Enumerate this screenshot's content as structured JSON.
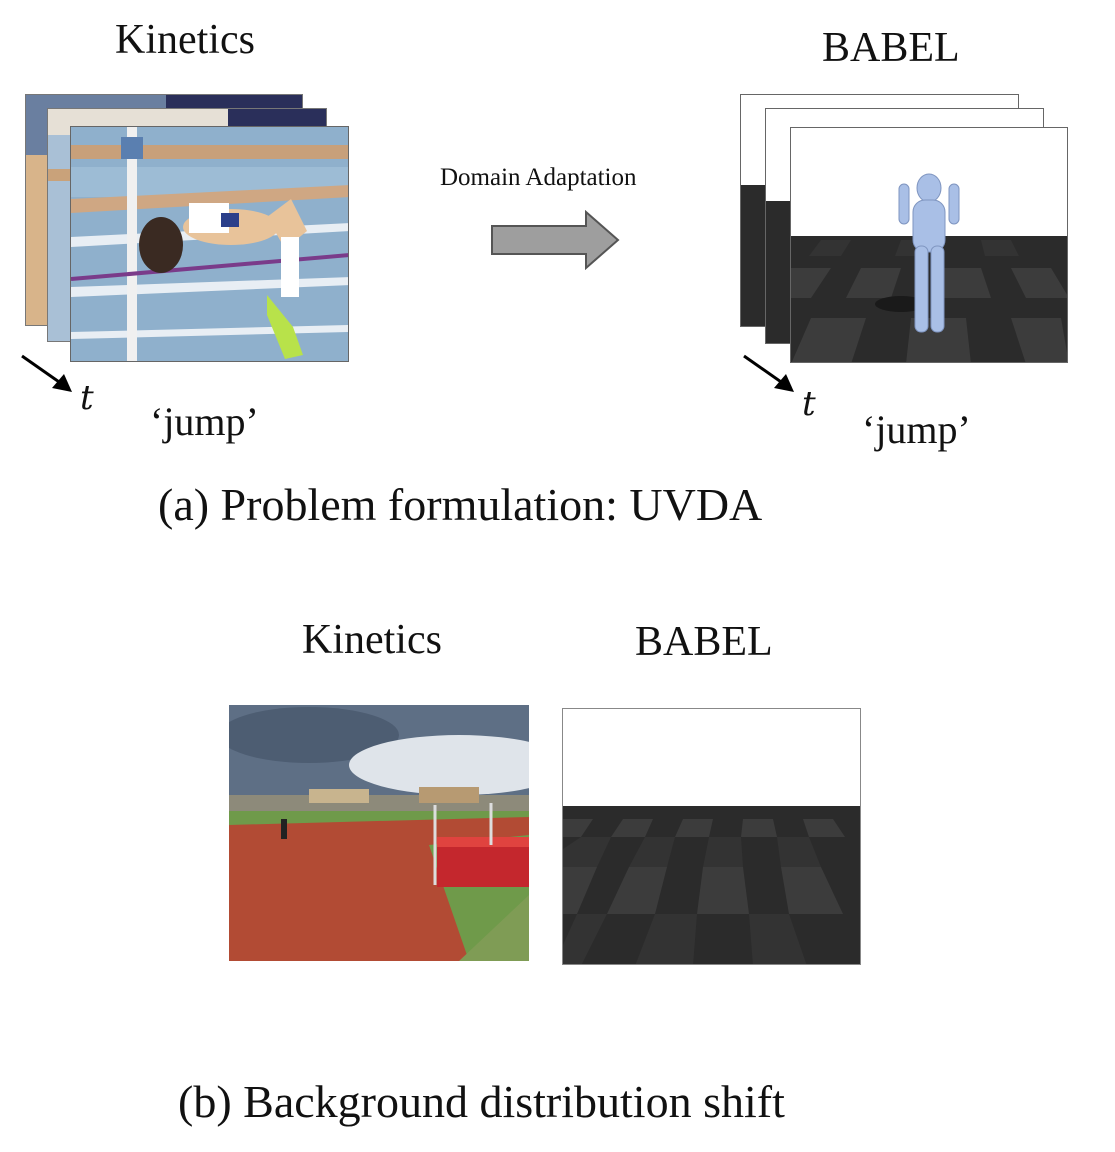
{
  "part_a": {
    "source_title": "Kinetics",
    "target_title": "BABEL",
    "arrow_label": "Domain Adaptation",
    "time_symbol_left": "t",
    "time_symbol_right": "t",
    "label_left": "‘jump’",
    "label_right": "‘jump’",
    "caption": "(a) Problem formulation: UVDA"
  },
  "part_b": {
    "source_title": "Kinetics",
    "target_title": "BABEL",
    "caption": "(b) Background distribution shift"
  },
  "colors": {
    "arrow_fill": "#9e9e9e",
    "track_blue": "#8fb0cc",
    "track_red": "#b8503a",
    "babel_floor_dark": "#2b2b2b",
    "babel_floor_light": "#3c3c3c",
    "babel_body": "#a9bfe6"
  }
}
